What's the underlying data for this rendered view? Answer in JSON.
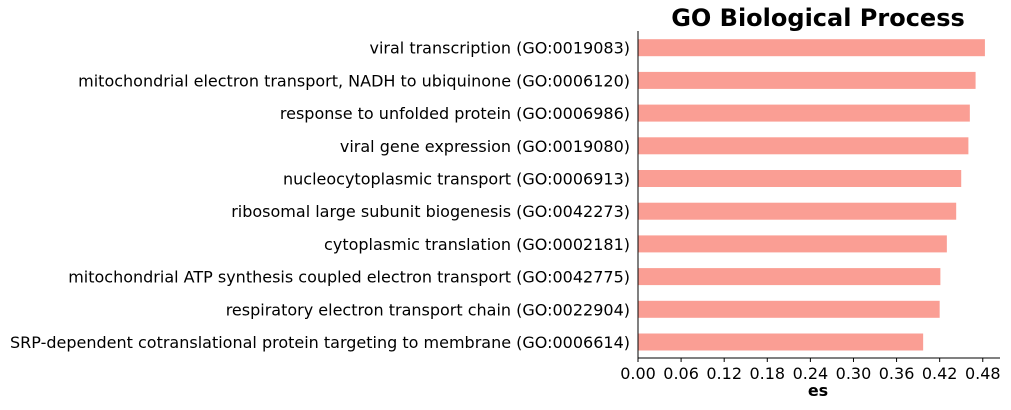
{
  "chart_data": {
    "type": "bar",
    "orientation": "horizontal",
    "title": "GO Biological Process",
    "xlabel": "es",
    "ylabel": "",
    "xlim": [
      0,
      0.504
    ],
    "xticks": [
      0.0,
      0.06,
      0.12,
      0.18,
      0.24,
      0.3,
      0.36,
      0.42,
      0.48
    ],
    "xtick_labels": [
      "0.00",
      "0.06",
      "0.12",
      "0.18",
      "0.24",
      "0.30",
      "0.36",
      "0.42",
      "0.48"
    ],
    "grid": false,
    "bar_color": "#FA9E94",
    "categories": [
      "viral transcription (GO:0019083)",
      "mitochondrial electron transport, NADH to ubiquinone (GO:0006120)",
      "response to unfolded protein (GO:0006986)",
      "viral gene expression (GO:0019080)",
      "nucleocytoplasmic transport (GO:0006913)",
      "ribosomal large subunit biogenesis (GO:0042273)",
      "cytoplasmic translation (GO:0002181)",
      "mitochondrial ATP synthesis coupled electron transport (GO:0042775)",
      "respiratory electron transport chain (GO:0022904)",
      "SRP-dependent cotranslational protein targeting to membrane (GO:0006614)"
    ],
    "values": [
      0.483,
      0.47,
      0.462,
      0.46,
      0.45,
      0.443,
      0.43,
      0.421,
      0.42,
      0.397
    ]
  }
}
